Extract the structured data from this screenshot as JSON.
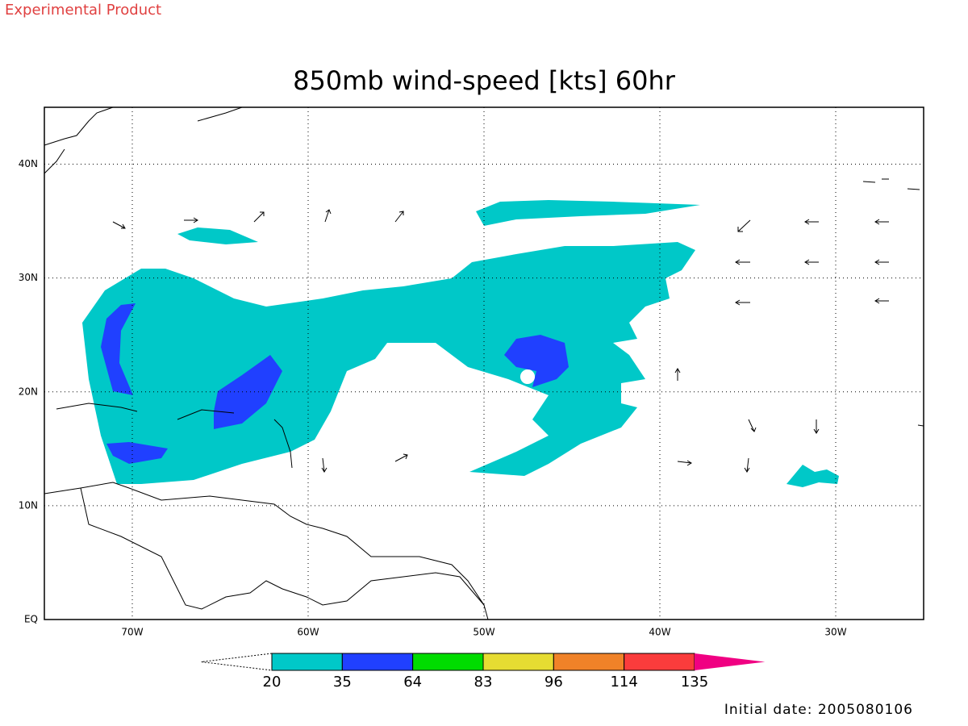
{
  "header": {
    "note": "Experimental Product",
    "title": "850mb wind-speed [kts] 60hr"
  },
  "map": {
    "xlim": [
      -75,
      -25
    ],
    "ylim": [
      0,
      45
    ],
    "xticks": [
      {
        "value": -70,
        "label": "70W"
      },
      {
        "value": -60,
        "label": "60W"
      },
      {
        "value": -50,
        "label": "50W"
      },
      {
        "value": -40,
        "label": "40W"
      },
      {
        "value": -30,
        "label": "30W"
      }
    ],
    "yticks": [
      {
        "value": 0,
        "label": "EQ"
      },
      {
        "value": 10,
        "label": "10N"
      },
      {
        "value": 20,
        "label": "20N"
      },
      {
        "value": 30,
        "label": "30N"
      },
      {
        "value": 40,
        "label": "40N"
      }
    ],
    "grid": true
  },
  "colorbar": {
    "levels": [
      20,
      35,
      64,
      83,
      96,
      114,
      135
    ],
    "colors": [
      "#00c8c8",
      "#2040ff",
      "#00dc00",
      "#e6dc32",
      "#f08228",
      "#fa3c3c",
      "#f00082"
    ]
  },
  "footer": {
    "initial_date": "Initial date: 2005080106"
  }
}
